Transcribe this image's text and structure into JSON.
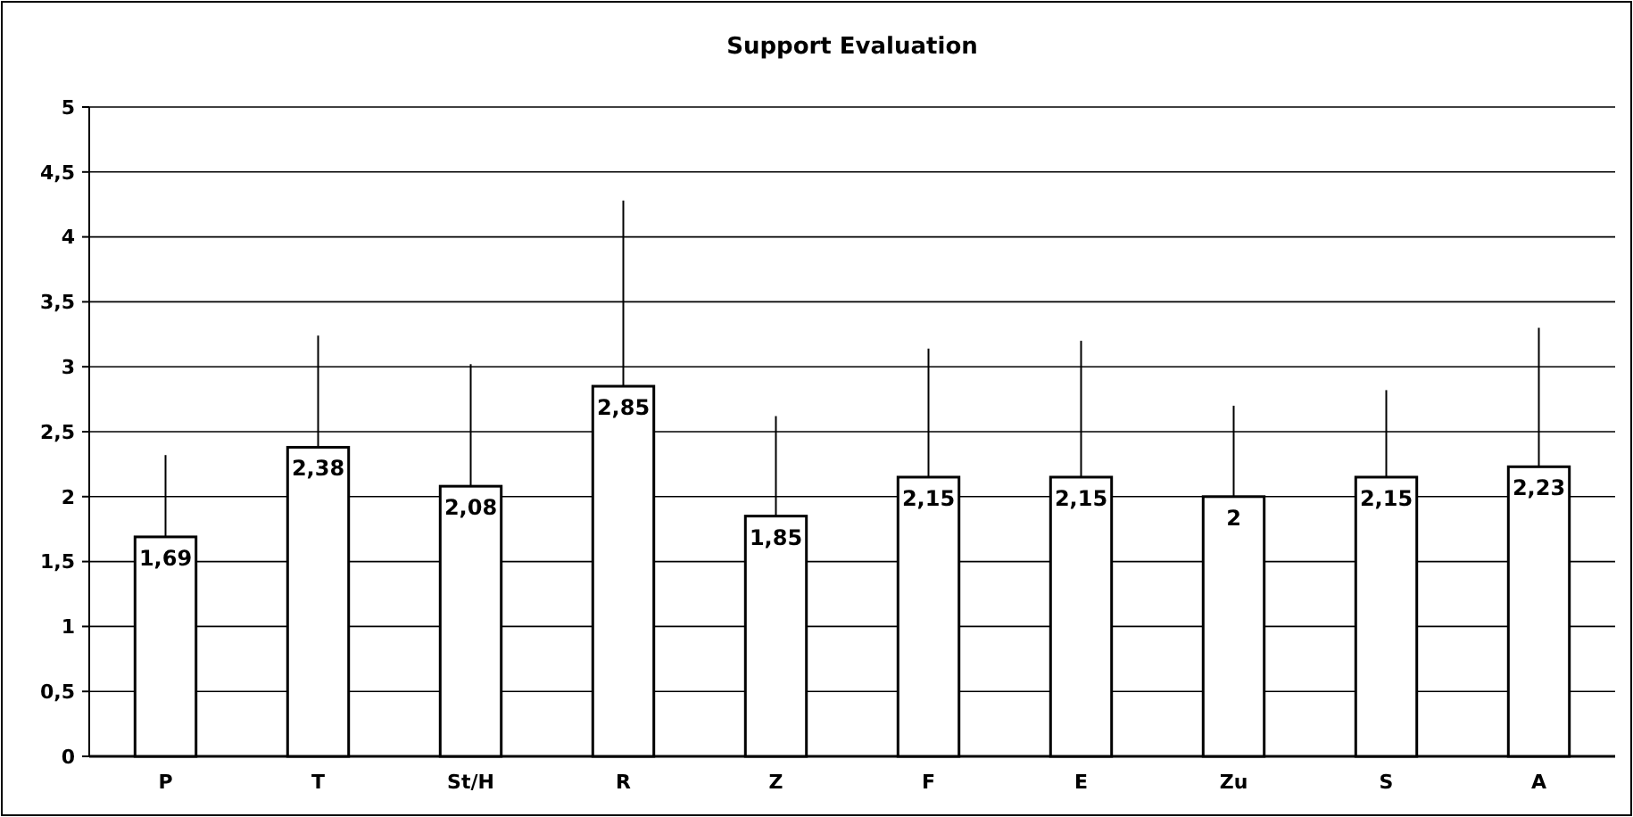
{
  "chart_data": {
    "type": "bar",
    "title": "Support Evaluation",
    "categories": [
      "P",
      "T",
      "St/H",
      "R",
      "Z",
      "F",
      "E",
      "Zu",
      "S",
      "A"
    ],
    "values": [
      1.69,
      2.38,
      2.08,
      2.85,
      1.85,
      2.15,
      2.15,
      2,
      2.15,
      2.23
    ],
    "value_labels": [
      "1,69",
      "2,38",
      "2,08",
      "2,85",
      "1,85",
      "2,15",
      "2,15",
      "2",
      "2,15",
      "2,23"
    ],
    "errors": [
      [
        1.69,
        2.32
      ],
      [
        2.38,
        3.24
      ],
      [
        2.08,
        3.02
      ],
      [
        2.85,
        4.28
      ],
      [
        1.85,
        2.62
      ],
      [
        2.15,
        3.14
      ],
      [
        2.15,
        3.2
      ],
      [
        2,
        2.7
      ],
      [
        2.15,
        2.82
      ],
      [
        2.23,
        3.3
      ]
    ],
    "color": "#ffffff",
    "ylim": [
      0,
      5
    ],
    "yticks": [
      0,
      {
        "value": 0.5,
        "label": "0,5"
      },
      1,
      {
        "value": 1.5,
        "label": "1,5"
      },
      2,
      {
        "value": 2.5,
        "label": "2,5"
      },
      3,
      {
        "value": 3.5,
        "label": "3,5"
      },
      4,
      {
        "value": 4.5,
        "label": "4,5"
      },
      5
    ],
    "grid": "y"
  }
}
